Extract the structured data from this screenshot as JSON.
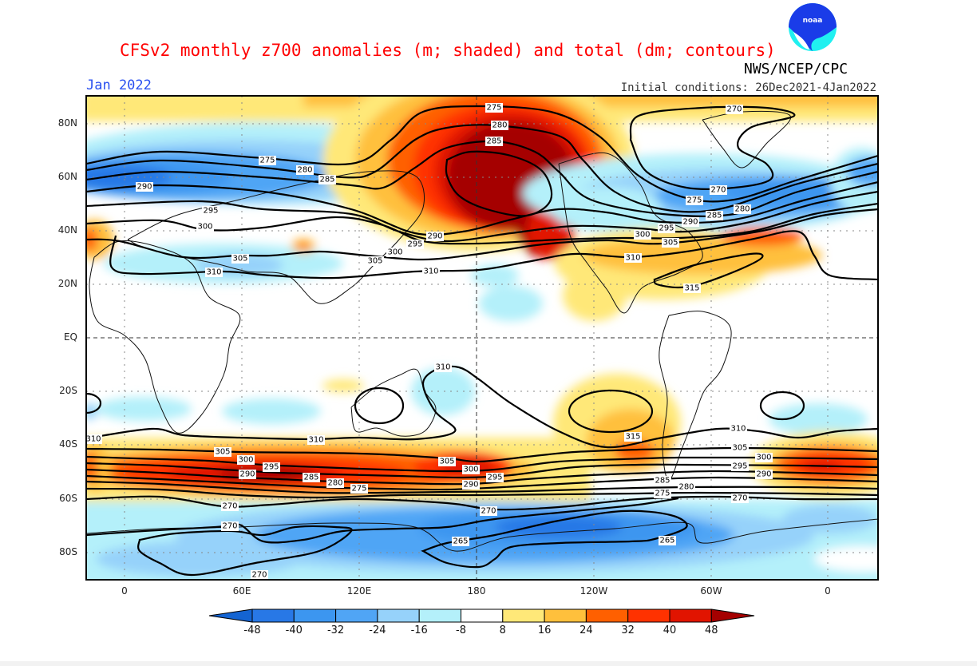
{
  "header": {
    "title": "CFSv2 monthly z700 anomalies (m; shaded) and total (dm; contours)",
    "agency": "NWS/NCEP/CPC",
    "month": "Jan 2022",
    "initial_conditions": "Initial conditions: 26Dec2021-4Jan2022",
    "logo_text": "NOAA"
  },
  "axes": {
    "lat_labels": [
      "80N",
      "60N",
      "40N",
      "20N",
      "EQ",
      "20S",
      "40S",
      "60S",
      "80S"
    ],
    "lon_labels": [
      "0",
      "60E",
      "120E",
      "180",
      "120W",
      "60W",
      "0"
    ]
  },
  "colorbar": {
    "levels": [
      "-48",
      "-40",
      "-32",
      "-24",
      "-16",
      "-8",
      "8",
      "16",
      "24",
      "32",
      "40",
      "48"
    ],
    "colors": [
      "#1464d2",
      "#2878e6",
      "#3c96f0",
      "#50a5f5",
      "#96d2fa",
      "#b4f0fa",
      "#ffffff",
      "#ffe878",
      "#ffc03c",
      "#ff6000",
      "#ff3200",
      "#e11400",
      "#a50000"
    ]
  },
  "contours": {
    "units": "dm",
    "labels": [
      "275",
      "280",
      "285",
      "290",
      "295",
      "300",
      "305",
      "310",
      "290",
      "295",
      "300",
      "305",
      "310",
      "275",
      "280",
      "285",
      "270",
      "270",
      "275",
      "280",
      "285",
      "290",
      "295",
      "300",
      "305",
      "310",
      "315",
      "310",
      "310",
      "310",
      "305",
      "300",
      "295",
      "290",
      "285",
      "280",
      "275",
      "270",
      "270",
      "270",
      "265",
      "305",
      "300",
      "295",
      "290",
      "270",
      "310",
      "315",
      "305",
      "300",
      "295",
      "290",
      "285",
      "280",
      "275",
      "270",
      "265"
    ]
  }
}
